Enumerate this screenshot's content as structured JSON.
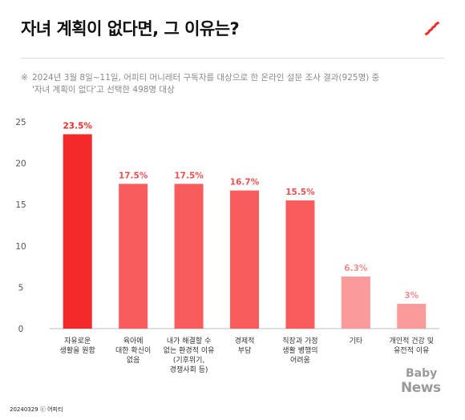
{
  "header": {
    "title": "자녀 계획이 없다면, 그 이유는?"
  },
  "note": {
    "mark": "※",
    "line1": "2024년 3월 8일~11일, 어피티 머니레터 구독자를 대상으로 한 온라인 설문 조사 결과(925명) 중",
    "line2": "'자녀 계획이 없다'고 선택한 498명 대상"
  },
  "footer": {
    "text": "20240329 ⓒ 어피티"
  },
  "logo": {
    "baby": "Baby",
    "news": "News"
  },
  "colors": {
    "top_bar": "#f42a2a",
    "mid_bars": "#f95c5c",
    "light_bars": "#fa9a9a",
    "label_dark": "#f42a2a",
    "label_mid": "#ee5050",
    "label_light": "#f28c8c"
  },
  "chart_data": {
    "type": "bar",
    "categories": [
      [
        "자유로운",
        "생활을 원함"
      ],
      [
        "육아에",
        "대한 확신이",
        "없음"
      ],
      [
        "내가 해결할 수",
        "없는 환경적 이유",
        "(기후위기,",
        "경쟁사회 등)"
      ],
      [
        "경제적",
        "부담"
      ],
      [
        "직장과 가정",
        "생활 병행의",
        "어려움"
      ],
      [
        "기타"
      ],
      [
        "개인적 건강 및",
        "유전적 이유"
      ]
    ],
    "values": [
      23.5,
      17.5,
      17.5,
      16.7,
      15.5,
      6.3,
      3
    ],
    "value_labels": [
      "23.5%",
      "17.5%",
      "17.5%",
      "16.7%",
      "15.5%",
      "6.3%",
      "3%"
    ],
    "bar_colors": [
      "#f42a2a",
      "#f95c5c",
      "#f95c5c",
      "#f95c5c",
      "#f95c5c",
      "#fa9a9a",
      "#fa9a9a"
    ],
    "label_colors": [
      "#f42a2a",
      "#ee5050",
      "#ee5050",
      "#ee5050",
      "#ee5050",
      "#f28c8c",
      "#f28c8c"
    ],
    "yticks": [
      0,
      5,
      10,
      15,
      20,
      25
    ],
    "ylim": [
      0,
      25
    ],
    "grid": false
  }
}
